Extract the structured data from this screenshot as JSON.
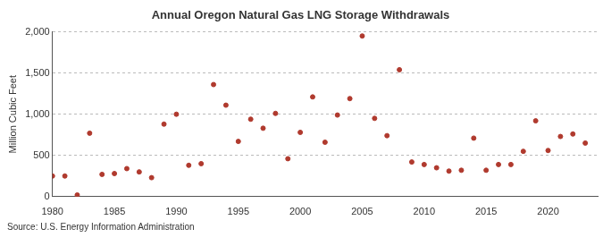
{
  "chart_data": {
    "type": "scatter",
    "title": "Annual Oregon Natural Gas LNG Storage Withdrawals",
    "y_label": "Million Cubic Feet",
    "source": "Source: U.S. Energy Information Administration",
    "x": [
      1980,
      1981,
      1982,
      1983,
      1984,
      1985,
      1986,
      1987,
      1988,
      1989,
      1990,
      1991,
      1992,
      1993,
      1994,
      1995,
      1996,
      1997,
      1998,
      1999,
      2000,
      2001,
      2002,
      2003,
      2004,
      2005,
      2006,
      2007,
      2008,
      2009,
      2010,
      2011,
      2012,
      2013,
      2014,
      2015,
      2016,
      2017,
      2018,
      2019,
      2020,
      2021,
      2022,
      2023
    ],
    "values": [
      250,
      250,
      20,
      770,
      270,
      280,
      340,
      300,
      230,
      880,
      1000,
      380,
      400,
      1360,
      1110,
      670,
      940,
      830,
      1010,
      460,
      780,
      1210,
      660,
      990,
      1190,
      1950,
      950,
      740,
      1540,
      420,
      390,
      350,
      310,
      320,
      710,
      320,
      390,
      390,
      550,
      920,
      560,
      730,
      760,
      650
    ],
    "color": "#b03a2e",
    "marker": "circle",
    "xlim": [
      1980,
      2024
    ],
    "xticks": [
      1980,
      1985,
      1990,
      1995,
      2000,
      2005,
      2010,
      2015,
      2020
    ],
    "ylim": [
      0,
      2000
    ],
    "yticks": [
      0,
      500,
      {
        "value": 1000,
        "label": "1,000"
      },
      {
        "value": 1500,
        "label": "1,500"
      },
      {
        "value": 2000,
        "label": "2,000"
      }
    ],
    "grid": true
  }
}
